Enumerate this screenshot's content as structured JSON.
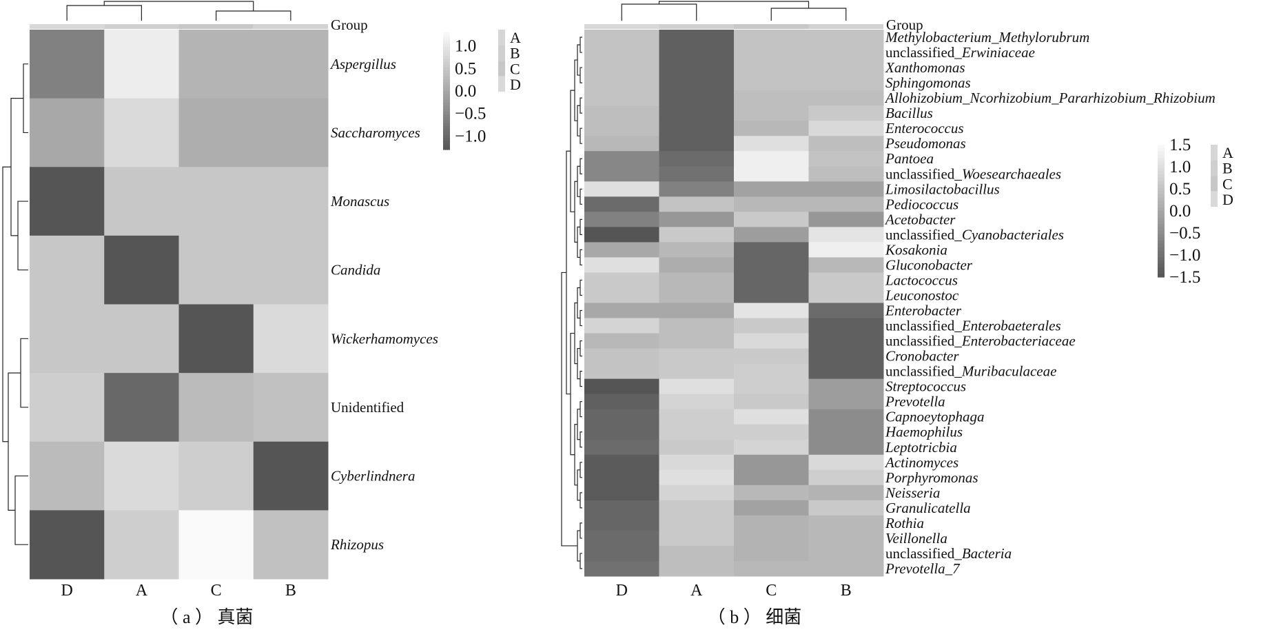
{
  "chart_data": [
    {
      "type": "heatmap",
      "panel": "a",
      "caption": "（ a ） 真菌",
      "group_label": "Group",
      "columns": [
        "D",
        "A",
        "C",
        "B"
      ],
      "rows": [
        {
          "label": "Aspergillus",
          "italic": true,
          "values": [
            -0.6,
            1.1,
            0.2,
            0.2
          ]
        },
        {
          "label": "Saccharomyces",
          "italic": true,
          "values": [
            0.0,
            0.8,
            0.1,
            0.1
          ]
        },
        {
          "label": "Monascus",
          "italic": true,
          "values": [
            -1.3,
            0.5,
            0.5,
            0.5
          ]
        },
        {
          "label": "Candida",
          "italic": true,
          "values": [
            0.5,
            -1.3,
            0.5,
            0.5
          ]
        },
        {
          "label": "Wickerhamomyces",
          "italic": true,
          "values": [
            0.5,
            0.5,
            -1.3,
            0.8
          ]
        },
        {
          "label": "Unidentified",
          "italic": false,
          "values": [
            0.6,
            -1.0,
            0.3,
            0.4
          ]
        },
        {
          "label": "Cyberlindnera",
          "italic": true,
          "values": [
            0.3,
            0.8,
            0.6,
            -1.4
          ]
        },
        {
          "label": "Rhizopus",
          "italic": true,
          "values": [
            -1.5,
            0.6,
            1.3,
            0.4
          ]
        }
      ],
      "scale": {
        "min": -1.3,
        "max": 1.3,
        "ticks": [
          "1.0",
          "0.5",
          "0.0",
          "−0.5",
          "−1.0"
        ],
        "tick_values": [
          1.0,
          0.5,
          0.0,
          -0.5,
          -1.0
        ]
      },
      "group_legend": [
        "A",
        "B",
        "C",
        "D"
      ]
    },
    {
      "type": "heatmap",
      "panel": "b",
      "caption": "（ b ） 细菌",
      "group_label": "Group",
      "columns": [
        "D",
        "A",
        "C",
        "B"
      ],
      "rows": [
        {
          "segments": [
            {
              "text": "Methylobacterium_Methylorubrum",
              "italic": true
            }
          ],
          "values": [
            0.5,
            -1.3,
            0.5,
            0.5
          ]
        },
        {
          "segments": [
            {
              "text": "unclassified_",
              "italic": false
            },
            {
              "text": "Erwiniaceae",
              "italic": true
            }
          ],
          "values": [
            0.5,
            -1.3,
            0.5,
            0.5
          ]
        },
        {
          "segments": [
            {
              "text": "Xanthomonas",
              "italic": true
            }
          ],
          "values": [
            0.5,
            -1.3,
            0.5,
            0.5
          ]
        },
        {
          "segments": [
            {
              "text": "Sphingomonas",
              "italic": true
            }
          ],
          "values": [
            0.5,
            -1.3,
            0.5,
            0.5
          ]
        },
        {
          "segments": [
            {
              "text": "Allohizobium_Ncorhizobium_Pararhizobium_Rhizobium",
              "italic": true
            }
          ],
          "values": [
            0.5,
            -1.3,
            0.4,
            0.4
          ]
        },
        {
          "segments": [
            {
              "text": "Bacillus",
              "italic": true
            }
          ],
          "values": [
            0.4,
            -1.3,
            0.4,
            0.6
          ]
        },
        {
          "segments": [
            {
              "text": "Enterococcus",
              "italic": true
            }
          ],
          "values": [
            0.4,
            -1.3,
            0.3,
            0.9
          ]
        },
        {
          "segments": [
            {
              "text": "Pseudomonas",
              "italic": true
            }
          ],
          "values": [
            0.3,
            -1.3,
            1.0,
            0.4
          ]
        },
        {
          "segments": [
            {
              "text": "Pantoea",
              "italic": true
            }
          ],
          "values": [
            -0.6,
            -1.1,
            1.3,
            0.5
          ]
        },
        {
          "segments": [
            {
              "text": "unclassified_",
              "italic": false
            },
            {
              "text": "Woesearchaeales",
              "italic": true
            }
          ],
          "values": [
            -0.6,
            -1.0,
            1.3,
            0.4
          ]
        },
        {
          "segments": [
            {
              "text": "Limosilactobacillus",
              "italic": true
            }
          ],
          "values": [
            1.0,
            -0.7,
            -0.1,
            -0.1
          ]
        },
        {
          "segments": [
            {
              "text": "Pediococcus",
              "italic": true
            }
          ],
          "values": [
            -1.1,
            0.5,
            0.3,
            0.3
          ]
        },
        {
          "segments": [
            {
              "text": "Acetobacter",
              "italic": true
            }
          ],
          "values": [
            -0.7,
            -0.3,
            0.6,
            -0.3
          ]
        },
        {
          "segments": [
            {
              "text": "unclassified_",
              "italic": false
            },
            {
              "text": "Cyanobacteriales",
              "italic": true
            }
          ],
          "values": [
            -1.5,
            0.6,
            -0.2,
            1.1
          ]
        },
        {
          "segments": [
            {
              "text": "Kosakonia",
              "italic": true
            }
          ],
          "values": [
            0.0,
            0.3,
            -1.2,
            1.3
          ]
        },
        {
          "segments": [
            {
              "text": "Gluconobacter",
              "italic": true
            }
          ],
          "values": [
            1.0,
            0.1,
            -1.2,
            0.3
          ]
        },
        {
          "segments": [
            {
              "text": "Lactococcus",
              "italic": true
            }
          ],
          "values": [
            0.6,
            0.3,
            -1.2,
            0.6
          ]
        },
        {
          "segments": [
            {
              "text": "Leuconostoc",
              "italic": true
            }
          ],
          "values": [
            0.6,
            0.3,
            -1.2,
            0.6
          ]
        },
        {
          "segments": [
            {
              "text": "Enterobacter",
              "italic": true
            }
          ],
          "values": [
            0.0,
            0.0,
            1.1,
            -1.1
          ]
        },
        {
          "segments": [
            {
              "text": "unclassified_",
              "italic": false
            },
            {
              "text": "Enterobaeterales",
              "italic": true
            }
          ],
          "values": [
            0.8,
            0.4,
            0.6,
            -1.3
          ]
        },
        {
          "segments": [
            {
              "text": "unclassified_",
              "italic": false
            },
            {
              "text": "Enterobacteriaceae",
              "italic": true
            }
          ],
          "values": [
            0.3,
            0.4,
            0.9,
            -1.3
          ]
        },
        {
          "segments": [
            {
              "text": "Cronobacter",
              "italic": true
            }
          ],
          "values": [
            0.5,
            0.6,
            0.6,
            -1.3
          ]
        },
        {
          "segments": [
            {
              "text": "unclassified_",
              "italic": false
            },
            {
              "text": "Muribaculaceae",
              "italic": true
            }
          ],
          "values": [
            0.5,
            0.6,
            0.7,
            -1.3
          ]
        },
        {
          "segments": [
            {
              "text": "Streptococcus",
              "italic": true
            }
          ],
          "values": [
            -1.5,
            1.0,
            0.7,
            -0.2
          ]
        },
        {
          "segments": [
            {
              "text": "Prevotella",
              "italic": true
            }
          ],
          "values": [
            -1.3,
            0.8,
            0.6,
            -0.2
          ]
        },
        {
          "segments": [
            {
              "text": "Capnoeytophaga",
              "italic": true
            }
          ],
          "values": [
            -1.2,
            0.7,
            1.0,
            -0.5
          ]
        },
        {
          "segments": [
            {
              "text": "Haemophilus",
              "italic": true
            }
          ],
          "values": [
            -1.2,
            0.7,
            0.7,
            -0.5
          ]
        },
        {
          "segments": [
            {
              "text": "Leptotricbia",
              "italic": true
            }
          ],
          "values": [
            -1.1,
            0.6,
            0.8,
            -0.5
          ]
        },
        {
          "segments": [
            {
              "text": "Actinomyces",
              "italic": true
            }
          ],
          "values": [
            -1.4,
            0.9,
            -0.3,
            0.9
          ]
        },
        {
          "segments": [
            {
              "text": "Porphyromonas",
              "italic": true
            }
          ],
          "values": [
            -1.4,
            1.0,
            -0.3,
            0.7
          ]
        },
        {
          "segments": [
            {
              "text": "Neisseria",
              "italic": true
            }
          ],
          "values": [
            -1.4,
            0.8,
            0.3,
            0.2
          ]
        },
        {
          "segments": [
            {
              "text": "Granulicatella",
              "italic": true
            }
          ],
          "values": [
            -1.2,
            0.6,
            -0.1,
            0.6
          ]
        },
        {
          "segments": [
            {
              "text": "Rothia",
              "italic": true
            }
          ],
          "values": [
            -1.2,
            0.6,
            0.2,
            0.3
          ]
        },
        {
          "segments": [
            {
              "text": "Veillonella",
              "italic": true
            }
          ],
          "values": [
            -1.1,
            0.6,
            0.2,
            0.3
          ]
        },
        {
          "segments": [
            {
              "text": "unclassified_",
              "italic": false
            },
            {
              "text": "Bacteria",
              "italic": true
            }
          ],
          "values": [
            -1.1,
            0.4,
            0.2,
            0.3
          ]
        },
        {
          "segments": [
            {
              "text": "Prevotella_7",
              "italic": true
            }
          ],
          "values": [
            -1.0,
            0.4,
            0.3,
            0.3
          ]
        }
      ],
      "scale": {
        "min": -1.5,
        "max": 1.5,
        "ticks": [
          "1.5",
          "1.0",
          "0.5",
          "0.0",
          "−0.5",
          "−1.0",
          "−1.5"
        ],
        "tick_values": [
          1.5,
          1.0,
          0.5,
          0.0,
          -0.5,
          -1.0,
          -1.5
        ]
      },
      "group_legend": [
        "A",
        "B",
        "C",
        "D"
      ]
    }
  ]
}
